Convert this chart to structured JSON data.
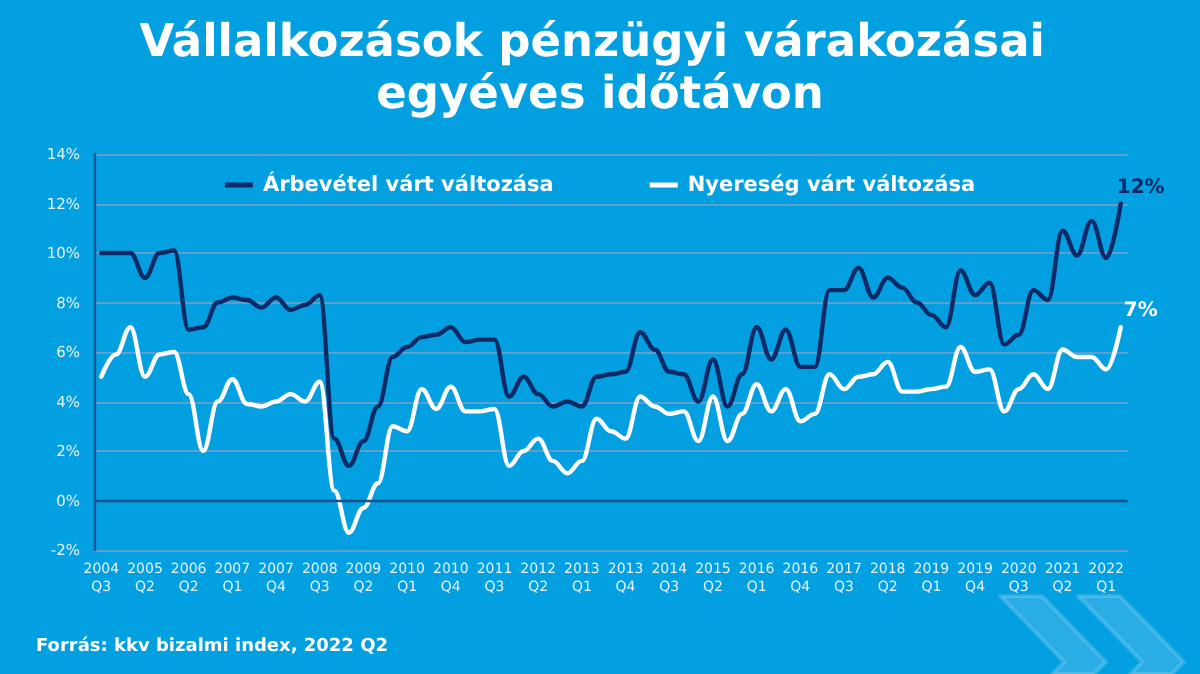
{
  "chart_data": {
    "type": "line",
    "title": "Vállalkozások pénzügyi várakozásai egyéves időtávon",
    "categories": [
      "2004 Q3",
      null,
      null,
      "2005 Q2",
      null,
      null,
      "2006 Q2",
      null,
      null,
      "2007 Q1",
      null,
      null,
      "2007 Q4",
      null,
      null,
      "2008 Q3",
      null,
      null,
      "2009 Q2",
      null,
      null,
      "2010 Q1",
      null,
      null,
      "2010 Q4",
      null,
      null,
      "2011 Q3",
      null,
      null,
      "2012 Q2",
      null,
      null,
      "2013 Q1",
      null,
      null,
      "2013 Q4",
      null,
      null,
      "2014 Q3",
      null,
      null,
      "2015 Q2",
      null,
      null,
      "2016 Q1",
      null,
      null,
      "2016 Q4",
      null,
      null,
      "2017 Q3",
      null,
      null,
      "2018 Q2",
      null,
      null,
      "2019 Q1",
      null,
      null,
      "2019 Q4",
      null,
      null,
      "2020 Q3",
      null,
      null,
      "2021 Q2",
      null,
      null,
      "2022 Q1",
      null
    ],
    "series": [
      {
        "name": "Árbevétel várt változása",
        "color": "#0c2a66",
        "values": [
          10.0,
          10.0,
          10.0,
          9.0,
          10.0,
          10.1,
          6.9,
          7.0,
          8.0,
          8.2,
          8.1,
          7.8,
          8.2,
          7.7,
          7.9,
          8.3,
          2.5,
          1.4,
          2.4,
          3.8,
          5.8,
          6.2,
          6.6,
          6.7,
          7.0,
          6.4,
          6.5,
          6.5,
          4.2,
          5.0,
          4.3,
          3.8,
          4.0,
          3.8,
          5.0,
          5.1,
          5.2,
          6.8,
          6.1,
          5.2,
          5.1,
          4.0,
          5.7,
          3.8,
          5.1,
          7.0,
          5.7,
          6.9,
          5.4,
          5.4,
          8.5,
          8.5,
          9.4,
          8.2,
          9.0,
          8.6,
          8.0,
          7.5,
          7.0,
          9.3,
          8.3,
          8.8,
          6.3,
          6.7,
          8.5,
          8.1,
          10.9,
          9.9,
          11.3,
          9.8,
          12.0
        ],
        "value_labels": [
          null,
          null,
          null,
          null,
          null,
          null,
          null,
          null,
          null,
          null,
          null,
          null,
          null,
          null,
          null,
          null,
          null,
          null,
          null,
          null,
          null,
          null,
          null,
          null,
          null,
          null,
          null,
          null,
          null,
          null,
          null,
          null,
          null,
          null,
          null,
          null,
          null,
          null,
          null,
          null,
          null,
          null,
          null,
          null,
          null,
          null,
          null,
          null,
          null,
          null,
          null,
          null,
          null,
          null,
          null,
          null,
          null,
          null,
          null,
          null,
          null,
          null,
          null,
          null,
          null,
          null,
          null,
          null,
          null,
          null,
          "12%"
        ]
      },
      {
        "name": "Nyereség várt változása",
        "color": "#ffffff",
        "values": [
          5.0,
          5.9,
          7.0,
          5.0,
          5.9,
          6.0,
          4.3,
          2.0,
          4.0,
          4.9,
          3.9,
          3.8,
          4.0,
          4.3,
          4.0,
          4.8,
          0.4,
          -1.3,
          -0.3,
          0.7,
          3.0,
          2.8,
          4.5,
          3.7,
          4.6,
          3.6,
          3.6,
          3.7,
          1.4,
          2.0,
          2.5,
          1.6,
          1.1,
          1.6,
          3.3,
          2.8,
          2.5,
          4.2,
          3.8,
          3.5,
          3.6,
          2.4,
          4.2,
          2.4,
          3.5,
          4.7,
          3.6,
          4.5,
          3.2,
          3.5,
          5.1,
          4.5,
          5.0,
          5.1,
          5.6,
          4.4,
          4.4,
          4.5,
          4.6,
          6.2,
          5.2,
          5.3,
          3.6,
          4.5,
          5.1,
          4.5,
          6.1,
          5.8,
          5.8,
          5.3,
          7.0
        ],
        "value_labels": [
          null,
          null,
          null,
          null,
          null,
          null,
          null,
          null,
          null,
          null,
          null,
          null,
          null,
          null,
          null,
          null,
          null,
          null,
          null,
          null,
          null,
          null,
          null,
          null,
          null,
          null,
          null,
          null,
          null,
          null,
          null,
          null,
          null,
          null,
          null,
          null,
          null,
          null,
          null,
          null,
          null,
          null,
          null,
          null,
          null,
          null,
          null,
          null,
          null,
          null,
          null,
          null,
          null,
          null,
          null,
          null,
          null,
          null,
          null,
          null,
          null,
          null,
          null,
          null,
          null,
          null,
          null,
          null,
          null,
          null,
          "7%"
        ]
      }
    ],
    "ylim": [
      -2,
      14
    ],
    "yticks": [
      {
        "value": -2,
        "label": "-2%"
      },
      {
        "value": 0,
        "label": "0%"
      },
      {
        "value": 2,
        "label": "2%"
      },
      {
        "value": 4,
        "label": "4%"
      },
      {
        "value": 6,
        "label": "6%"
      },
      {
        "value": 8,
        "label": "8%"
      },
      {
        "value": 10,
        "label": "10%"
      },
      {
        "value": 12,
        "label": "12%"
      },
      {
        "value": 14,
        "label": "14%"
      }
    ],
    "ref_lines": [
      {
        "axis": "y",
        "value": 0,
        "color": "#1d4f8c"
      }
    ],
    "grid": "y",
    "legend": "top",
    "marker": "none",
    "annotations": [
      "Forrás: kkv bizalmi index, 2022 Q2"
    ]
  }
}
